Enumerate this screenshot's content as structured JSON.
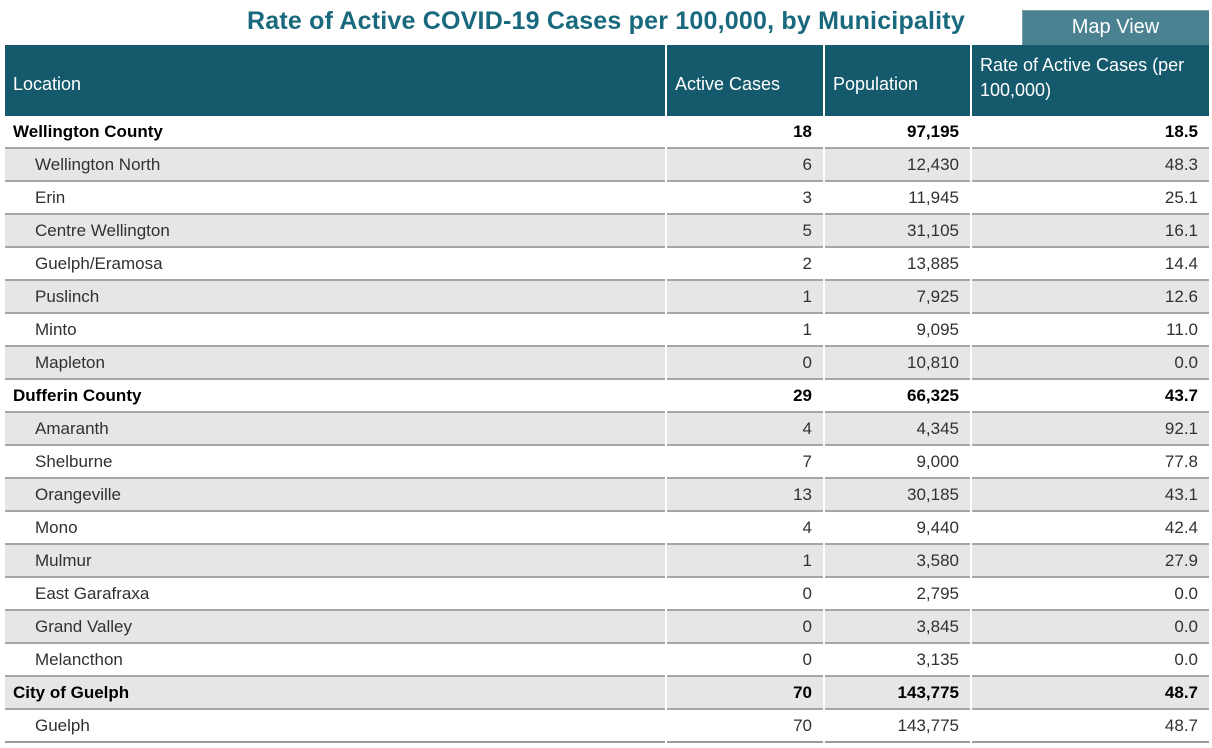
{
  "page": {
    "title": "Rate of Active COVID-19 Cases per 100,000, by Municipality",
    "map_view_button_label": "Map View"
  },
  "colors": {
    "title_teal": "#19697e",
    "header_teal": "#14596c",
    "button_teal": "#4b8291",
    "stripe_gray": "#e6e6e6",
    "row_border_gray": "#a6a6a6",
    "header_text": "#ffffff",
    "body_text": "#323130"
  },
  "chart_data": {
    "type": "table",
    "title": "Rate of Active COVID-19 Cases per 100,000, by Municipality",
    "legend_position": "none",
    "grid": "row-banding",
    "columns": [
      "Location",
      "Active Cases",
      "Population",
      "Rate of Active Cases (per 100,000)"
    ],
    "rows": [
      {
        "location": "Wellington County",
        "active_cases": "18",
        "population": "97,195",
        "rate": "18.5",
        "group": true
      },
      {
        "location": "Wellington North",
        "active_cases": "6",
        "population": "12,430",
        "rate": "48.3",
        "group": false
      },
      {
        "location": "Erin",
        "active_cases": "3",
        "population": "11,945",
        "rate": "25.1",
        "group": false
      },
      {
        "location": "Centre Wellington",
        "active_cases": "5",
        "population": "31,105",
        "rate": "16.1",
        "group": false
      },
      {
        "location": "Guelph/Eramosa",
        "active_cases": "2",
        "population": "13,885",
        "rate": "14.4",
        "group": false
      },
      {
        "location": "Puslinch",
        "active_cases": "1",
        "population": "7,925",
        "rate": "12.6",
        "group": false
      },
      {
        "location": "Minto",
        "active_cases": "1",
        "population": "9,095",
        "rate": "11.0",
        "group": false
      },
      {
        "location": "Mapleton",
        "active_cases": "0",
        "population": "10,810",
        "rate": "0.0",
        "group": false
      },
      {
        "location": "Dufferin County",
        "active_cases": "29",
        "population": "66,325",
        "rate": "43.7",
        "group": true
      },
      {
        "location": "Amaranth",
        "active_cases": "4",
        "population": "4,345",
        "rate": "92.1",
        "group": false
      },
      {
        "location": "Shelburne",
        "active_cases": "7",
        "population": "9,000",
        "rate": "77.8",
        "group": false
      },
      {
        "location": "Orangeville",
        "active_cases": "13",
        "population": "30,185",
        "rate": "43.1",
        "group": false
      },
      {
        "location": "Mono",
        "active_cases": "4",
        "population": "9,440",
        "rate": "42.4",
        "group": false
      },
      {
        "location": "Mulmur",
        "active_cases": "1",
        "population": "3,580",
        "rate": "27.9",
        "group": false
      },
      {
        "location": "East Garafraxa",
        "active_cases": "0",
        "population": "2,795",
        "rate": "0.0",
        "group": false
      },
      {
        "location": "Grand Valley",
        "active_cases": "0",
        "population": "3,845",
        "rate": "0.0",
        "group": false
      },
      {
        "location": "Melancthon",
        "active_cases": "0",
        "population": "3,135",
        "rate": "0.0",
        "group": false
      },
      {
        "location": "City of Guelph",
        "active_cases": "70",
        "population": "143,775",
        "rate": "48.7",
        "group": true
      },
      {
        "location": "Guelph",
        "active_cases": "70",
        "population": "143,775",
        "rate": "48.7",
        "group": false
      }
    ]
  }
}
